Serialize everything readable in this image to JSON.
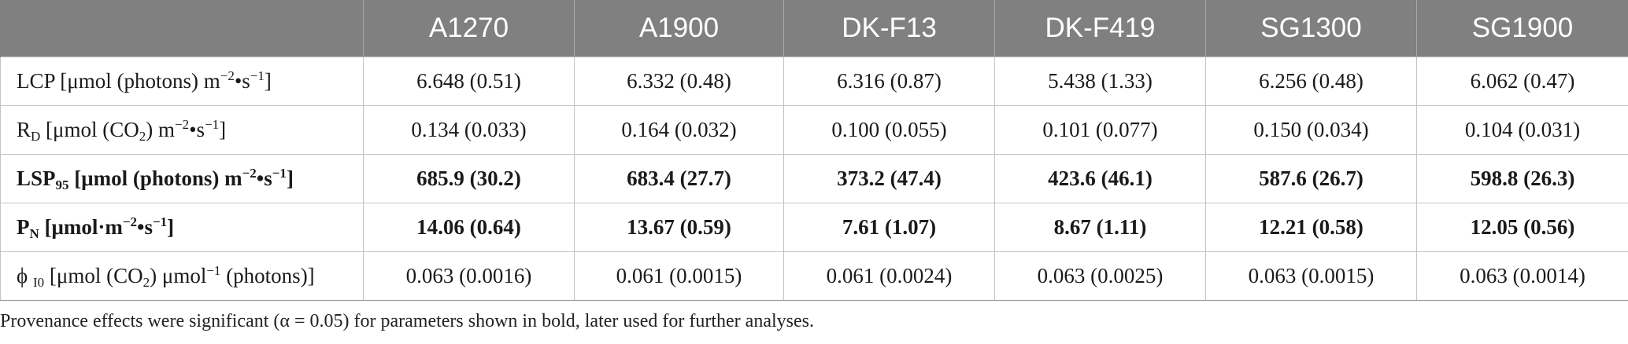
{
  "table": {
    "header": {
      "corner": "",
      "columns": [
        "A1270",
        "A1900",
        "DK-F13",
        "DK-F419",
        "SG1300",
        "SG1900"
      ]
    },
    "rows": [
      {
        "bold": false,
        "param": {
          "a": "LCP [μmol (photons) m",
          "sup1": "−2",
          "b": "•s",
          "sup2": "−1",
          "c": "]"
        },
        "values": [
          "6.648 (0.51)",
          "6.332 (0.48)",
          "6.316 (0.87)",
          "5.438 (1.33)",
          "6.256 (0.48)",
          "6.062 (0.47)"
        ]
      },
      {
        "bold": false,
        "param": {
          "a": "R",
          "sub": "D",
          "b": " [μmol (CO",
          "sub2": "2",
          "c": ") m",
          "sup1": "−2",
          "d": "•s",
          "sup2": "−1",
          "e": "]"
        },
        "values": [
          "0.134 (0.033)",
          "0.164 (0.032)",
          "0.100 (0.055)",
          "0.101 (0.077)",
          "0.150 (0.034)",
          "0.104 (0.031)"
        ]
      },
      {
        "bold": true,
        "param": {
          "a": "LSP",
          "sub": "95",
          "b": " [μmol (photons) m",
          "sup1": "−2",
          "c": "•s",
          "sup2": "−1",
          "d": "]"
        },
        "values": [
          "685.9 (30.2)",
          "683.4 (27.7)",
          "373.2 (47.4)",
          "423.6 (46.1)",
          "587.6 (26.7)",
          "598.8 (26.3)"
        ]
      },
      {
        "bold": true,
        "param": {
          "a": "P",
          "sub": "N",
          "b": " [μmol·m",
          "sup1": "−2",
          "c": "•s",
          "sup2": "−1",
          "d": "]"
        },
        "values": [
          "14.06 (0.64)",
          "13.67 (0.59)",
          "7.61 (1.07)",
          "8.67 (1.11)",
          "12.21 (0.58)",
          "12.05 (0.56)"
        ]
      },
      {
        "bold": false,
        "param": {
          "a": "ϕ ",
          "sub": "I0",
          "b": " [μmol (CO",
          "sub2": "2",
          "c": ") μmol",
          "sup1": "−1",
          "d": " (photons)]"
        },
        "values": [
          "0.063 (0.0016)",
          "0.061 (0.0015)",
          "0.061 (0.0024)",
          "0.063 (0.0025)",
          "0.063 (0.0015)",
          "0.063 (0.0014)"
        ]
      }
    ]
  },
  "footnote": "Provenance effects were significant (α = 0.05) for parameters shown in bold, later used for further analyses."
}
